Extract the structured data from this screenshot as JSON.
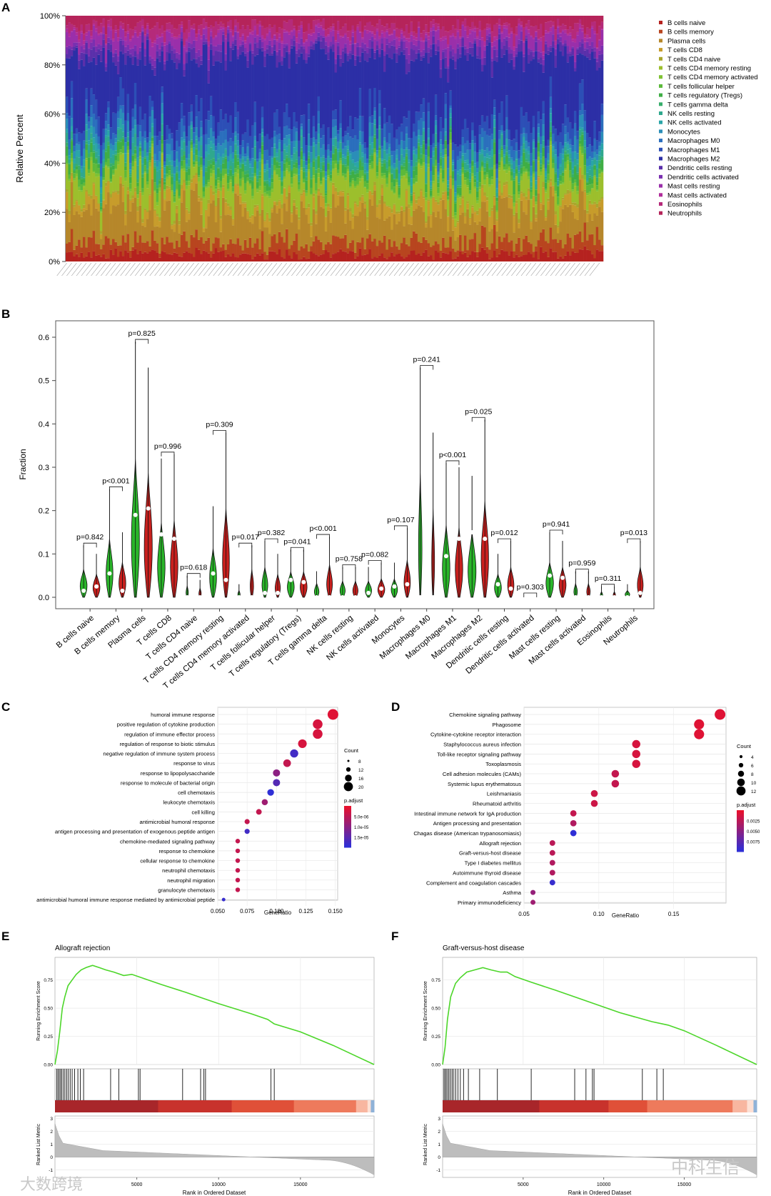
{
  "panel_labels": [
    "A",
    "B",
    "C",
    "D",
    "E",
    "F"
  ],
  "colors": {
    "normal": "#2ab52a",
    "tumor": "#c8201e",
    "gsea_line": "#4cd629",
    "padj_high": "#e8112d",
    "padj_low": "#2f2fd6",
    "heat": [
      "#a8262a",
      "#c8322c",
      "#e05038",
      "#ee7a5c",
      "#f8b6a0",
      "#fde0d4",
      "#8fb2d8",
      "#3d6fb6"
    ]
  },
  "chart_data": [
    {
      "panel": "A",
      "type": "stacked_bar",
      "ylabel": "Relative Percent",
      "yticks": [
        "0%",
        "20%",
        "40%",
        "60%",
        "80%",
        "100%"
      ],
      "ylim": [
        0,
        100
      ],
      "n_samples": 220,
      "legend": [
        {
          "name": "B cells naive",
          "color": "#b5221f"
        },
        {
          "name": "B cells memory",
          "color": "#b8451f"
        },
        {
          "name": "Plasma cells",
          "color": "#b6872a"
        },
        {
          "name": "T cells CD8",
          "color": "#c79c2b"
        },
        {
          "name": "T cells CD4 naive",
          "color": "#a9a62c"
        },
        {
          "name": "T cells CD4 memory resting",
          "color": "#9cbf2c"
        },
        {
          "name": "T cells CD4 memory activated",
          "color": "#7fc233"
        },
        {
          "name": "T cells follicular helper",
          "color": "#5cb93b"
        },
        {
          "name": "T cells regulatory (Tregs)",
          "color": "#3fae45"
        },
        {
          "name": "T cells gamma delta",
          "color": "#37ae6b"
        },
        {
          "name": "NK cells resting",
          "color": "#2fa88d"
        },
        {
          "name": "NK cells activated",
          "color": "#2aa5a8"
        },
        {
          "name": "Monocytes",
          "color": "#2b8eb8"
        },
        {
          "name": "Macrophages M0",
          "color": "#2b6fbd"
        },
        {
          "name": "Macrophages M1",
          "color": "#2c4fb6"
        },
        {
          "name": "Macrophages M2",
          "color": "#2c2fa6"
        },
        {
          "name": "Dendritic cells resting",
          "color": "#5a2faa"
        },
        {
          "name": "Dendritic cells activated",
          "color": "#7a2fb0"
        },
        {
          "name": "Mast cells resting",
          "color": "#9a2faa"
        },
        {
          "name": "Mast cells activated",
          "color": "#b02d9b"
        },
        {
          "name": "Eosinophils",
          "color": "#b52a7a"
        },
        {
          "name": "Neutrophils",
          "color": "#b5245a"
        }
      ],
      "mean_percent": [
        3,
        5,
        12,
        4,
        1,
        8,
        1,
        2,
        3,
        1,
        3,
        2,
        3,
        4,
        6,
        25,
        3,
        2,
        4,
        1,
        3,
        4
      ]
    },
    {
      "panel": "B",
      "type": "violin",
      "ylabel": "Fraction",
      "yticks": [
        "0.0",
        "0.1",
        "0.2",
        "0.3",
        "0.4",
        "0.5",
        "0.6"
      ],
      "ylim": [
        0,
        0.63
      ],
      "categories": [
        "B cells naive",
        "B cells memory",
        "Plasma cells",
        "T cells CD8",
        "T cells CD4 naive",
        "T cells CD4 memory resting",
        "T cells CD4 memory activated",
        "T cells follicular helper",
        "T cells regulatory (Tregs)",
        "T cells gamma delta",
        "NK cells resting",
        "NK cells activated",
        "Monocytes",
        "Macrophages M0",
        "Macrophages M1",
        "Macrophages M2",
        "Dendritic cells resting",
        "Dendritic cells activated",
        "Mast cells resting",
        "Mast cells activated",
        "Eosinophils",
        "Neutrophils"
      ],
      "pvalues": [
        "p=0.842",
        "p<0.001",
        "p=0.825",
        "p=0.996",
        "p=0.618",
        "p=0.309",
        "p=0.017",
        "p=0.382",
        "p=0.041",
        "p<0.001",
        "p=0.758",
        "p=0.082",
        "p=0.107",
        "p=0.241",
        "p<0.001",
        "p=0.025",
        "p=0.012",
        "p=0.303",
        "p=0.941",
        "p=0.959",
        "p=0.311",
        "p=0.013"
      ],
      "max_normal": [
        0.12,
        0.25,
        0.59,
        0.32,
        0.05,
        0.21,
        0.03,
        0.13,
        0.11,
        0.06,
        0.07,
        0.07,
        0.08,
        0.53,
        0.31,
        0.28,
        0.1,
        0.005,
        0.15,
        0.06,
        0.025,
        0.03
      ],
      "max_tumor": [
        0.1,
        0.15,
        0.53,
        0.33,
        0.04,
        0.38,
        0.12,
        0.1,
        0.11,
        0.14,
        0.07,
        0.08,
        0.16,
        0.38,
        0.3,
        0.41,
        0.13,
        0.005,
        0.13,
        0.06,
        0.025,
        0.13
      ],
      "median_normal": [
        0.015,
        0.055,
        0.19,
        0.145,
        0.0,
        0.055,
        0.0,
        0.01,
        0.04,
        0.0,
        0.0,
        0.01,
        0.025,
        0.0,
        0.095,
        0.15,
        0.03,
        0.0,
        0.05,
        0.0,
        0.0,
        0.0
      ],
      "median_tumor": [
        0.025,
        0.015,
        0.205,
        0.135,
        0.0,
        0.04,
        0.0,
        0.01,
        0.035,
        0.0,
        0.0,
        0.02,
        0.03,
        0.0,
        0.135,
        0.135,
        0.02,
        0.0,
        0.045,
        0.0,
        0.0,
        0.01
      ],
      "width_normal": [
        12,
        12,
        14,
        13,
        4,
        12,
        4,
        10,
        12,
        8,
        9,
        11,
        11,
        6,
        13,
        14,
        12,
        4,
        13,
        6,
        4,
        8
      ],
      "width_tumor": [
        12,
        12,
        14,
        13,
        4,
        12,
        6,
        9,
        12,
        10,
        9,
        12,
        11,
        5,
        13,
        13,
        11,
        4,
        12,
        6,
        4,
        10
      ]
    },
    {
      "panel": "C",
      "type": "dot",
      "xlabel": "GeneRatio",
      "xticks": [
        "0.050",
        "0.075",
        "0.100",
        "0.125",
        "0.150"
      ],
      "xlim": [
        0.05,
        0.152
      ],
      "terms": [
        "humoral immune response",
        "positive regulation of cytokine production",
        "regulation of immune effector process",
        "regulation of response to biotic stimulus",
        "negative regulation of immune system process",
        "response to virus",
        "response to lipopolysaccharide",
        "response to molecule of bacterial origin",
        "cell chemotaxis",
        "leukocyte chemotaxis",
        "cell killing",
        "antimicrobial humoral response",
        "antigen processing and presentation of exogenous peptide antigen",
        "chemokine-mediated signaling pathway",
        "response to chemokine",
        "cellular response to chemokine",
        "neutrophil chemotaxis",
        "neutrophil migration",
        "granulocyte chemotaxis",
        "antimicrobial humoral immune response mediated by antimicrobial peptide"
      ],
      "gene_ratio": [
        0.148,
        0.135,
        0.135,
        0.122,
        0.115,
        0.109,
        0.1,
        0.1,
        0.095,
        0.09,
        0.085,
        0.075,
        0.075,
        0.067,
        0.067,
        0.067,
        0.067,
        0.067,
        0.067,
        0.055
      ],
      "count": [
        22,
        20,
        20,
        18,
        17,
        16,
        15,
        15,
        14,
        13,
        12,
        11,
        11,
        10,
        10,
        10,
        10,
        10,
        10,
        8
      ],
      "padj_rank": [
        0.05,
        0.1,
        0.1,
        0.1,
        0.9,
        0.2,
        0.5,
        0.8,
        1.0,
        0.4,
        0.2,
        0.2,
        0.9,
        0.2,
        0.2,
        0.2,
        0.2,
        0.2,
        0.2,
        0.95
      ],
      "legend_count_title": "Count",
      "legend_count": [
        "8",
        "12",
        "16",
        "20"
      ],
      "legend_padj_title": "p.adjust",
      "legend_padj": [
        "5.0e-06",
        "1.0e-05",
        "1.5e-05"
      ]
    },
    {
      "panel": "D",
      "type": "dot",
      "xlabel": "GeneRatio",
      "xticks": [
        "0.05",
        "0.10",
        "0.15"
      ],
      "xlim": [
        0.05,
        0.185
      ],
      "terms": [
        "Chemokine signaling pathway",
        "Phagosome",
        "Cytokine-cytokine receptor interaction",
        "Staphylococcus aureus infection",
        "Toll-like receptor signaling pathway",
        "Toxoplasmosis",
        "Cell adhesion molecules (CAMs)",
        "Systemic lupus erythematosus",
        "Leishmaniasis",
        "Rheumatoid arthritis",
        "Intestinal immune network for IgA production",
        "Antigen processing and presentation",
        "Chagas disease (American trypanosomiasis)",
        "Allograft rejection",
        "Graft-versus-host disease",
        "Type I diabetes mellitus",
        "Autoimmune thyroid disease",
        "Complement and coagulation cascades",
        "Asthma",
        "Primary immunodeficiency"
      ],
      "gene_ratio": [
        0.181,
        0.167,
        0.167,
        0.125,
        0.125,
        0.125,
        0.111,
        0.111,
        0.097,
        0.097,
        0.083,
        0.083,
        0.083,
        0.069,
        0.069,
        0.069,
        0.069,
        0.069,
        0.056,
        0.056
      ],
      "count": [
        13,
        12,
        12,
        9,
        9,
        9,
        8,
        8,
        7,
        7,
        6,
        6,
        6,
        5,
        5,
        5,
        5,
        5,
        4,
        4
      ],
      "padj_rank": [
        0.05,
        0.05,
        0.05,
        0.1,
        0.1,
        0.1,
        0.2,
        0.2,
        0.15,
        0.15,
        0.2,
        0.3,
        1.0,
        0.25,
        0.25,
        0.3,
        0.3,
        0.95,
        0.45,
        0.4
      ],
      "legend_count_title": "Count",
      "legend_count": [
        "4",
        "6",
        "8",
        "10",
        "12"
      ],
      "legend_padj_title": "p.adjust",
      "legend_padj": [
        "0.0025",
        "0.0050",
        "0.0075"
      ]
    },
    {
      "panel": "E",
      "type": "gsea",
      "title": "Allograft rejection",
      "ylabel_top": "Running Enrichment Score",
      "ylabel_bottom": "Ranked List Metric",
      "xlabel": "Rank in Ordered Dataset",
      "xlim": [
        0,
        19500
      ],
      "es_yticks": [
        "0.00",
        "0.25",
        "0.50",
        "0.75"
      ],
      "es_ylim": [
        0,
        0.9
      ],
      "metric_yticks": [
        "-1",
        "0",
        "1",
        "2",
        "3"
      ],
      "metric_ylim": [
        -1.6,
        3.2
      ],
      "xticks": [
        "5000",
        "10000",
        "15000"
      ],
      "es_curve": [
        [
          0,
          0
        ],
        [
          150,
          0.12
        ],
        [
          300,
          0.3
        ],
        [
          450,
          0.5
        ],
        [
          600,
          0.6
        ],
        [
          800,
          0.7
        ],
        [
          1000,
          0.74
        ],
        [
          1300,
          0.8
        ],
        [
          1600,
          0.84
        ],
        [
          1900,
          0.86
        ],
        [
          2300,
          0.88
        ],
        [
          2700,
          0.86
        ],
        [
          3100,
          0.84
        ],
        [
          3600,
          0.82
        ],
        [
          4200,
          0.79
        ],
        [
          4700,
          0.8
        ],
        [
          5500,
          0.76
        ],
        [
          6500,
          0.71
        ],
        [
          8000,
          0.64
        ],
        [
          10000,
          0.54
        ],
        [
          12000,
          0.45
        ],
        [
          13000,
          0.4
        ],
        [
          13400,
          0.36
        ],
        [
          15000,
          0.29
        ],
        [
          17000,
          0.17
        ],
        [
          19500,
          0
        ]
      ],
      "hits": [
        100,
        180,
        260,
        340,
        420,
        520,
        610,
        720,
        820,
        930,
        1050,
        1200,
        1400,
        1550,
        1750,
        3400,
        3900,
        5100,
        5200,
        7800,
        8900,
        9100,
        9200,
        13200,
        13400
      ],
      "heat_breaks": [
        0,
        6300,
        10800,
        14600,
        18400,
        19100,
        19300,
        19500
      ]
    },
    {
      "panel": "F",
      "type": "gsea",
      "title": "Graft-versus-host disease",
      "ylabel_top": "Running Enrichment Score",
      "ylabel_bottom": "Ranked List Metric",
      "xlabel": "Rank in Ordered Dataset",
      "xlim": [
        0,
        19500
      ],
      "es_yticks": [
        "0.00",
        "0.25",
        "0.50",
        "0.75"
      ],
      "es_ylim": [
        0,
        0.9
      ],
      "metric_yticks": [
        "-1",
        "0",
        "1",
        "2",
        "3"
      ],
      "metric_ylim": [
        -1.6,
        3.2
      ],
      "xticks": [
        "5000",
        "10000",
        "15000"
      ],
      "es_curve": [
        [
          0,
          0
        ],
        [
          150,
          0.15
        ],
        [
          300,
          0.4
        ],
        [
          500,
          0.6
        ],
        [
          800,
          0.72
        ],
        [
          1100,
          0.77
        ],
        [
          1500,
          0.82
        ],
        [
          2000,
          0.84
        ],
        [
          2500,
          0.86
        ],
        [
          3000,
          0.84
        ],
        [
          3600,
          0.82
        ],
        [
          4000,
          0.82
        ],
        [
          4500,
          0.78
        ],
        [
          5500,
          0.73
        ],
        [
          7000,
          0.66
        ],
        [
          9000,
          0.56
        ],
        [
          11000,
          0.46
        ],
        [
          13000,
          0.38
        ],
        [
          14000,
          0.35
        ],
        [
          15000,
          0.3
        ],
        [
          17000,
          0.17
        ],
        [
          19500,
          0
        ]
      ],
      "hits": [
        80,
        150,
        230,
        320,
        400,
        500,
        600,
        700,
        820,
        950,
        1100,
        1300,
        1600,
        2300,
        3400,
        5500,
        8200,
        8900,
        9300,
        9400,
        12400,
        13300,
        13700
      ],
      "heat_breaks": [
        0,
        6000,
        10300,
        12700,
        18000,
        18900,
        19300,
        19500
      ]
    }
  ],
  "watermarks": {
    "left": "大数跨境",
    "right": "中科生信"
  }
}
